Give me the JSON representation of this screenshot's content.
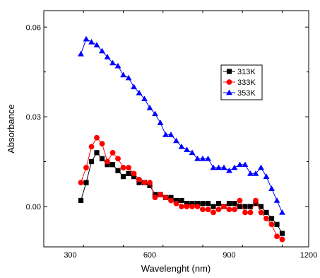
{
  "chart_data": {
    "type": "line",
    "title": "",
    "xlabel": "Wavelenght (nm)",
    "ylabel": "Absorbance",
    "xlim": [
      200,
      1200
    ],
    "ylim": [
      -0.0135,
      0.0655
    ],
    "xticks": [
      300,
      600,
      900,
      1200
    ],
    "xtick_labels": [
      "300",
      "600",
      "900",
      "1200"
    ],
    "yticks": [
      0.0,
      0.03,
      0.06
    ],
    "ytick_labels": [
      "0.00",
      "0.03",
      "0.06"
    ],
    "legend_position": "center-right",
    "grid": false,
    "series": [
      {
        "name": "313K",
        "color": "#000000",
        "marker": "square",
        "x": [
          340,
          360,
          380,
          400,
          420,
          440,
          460,
          480,
          500,
          520,
          540,
          560,
          580,
          600,
          620,
          640,
          660,
          680,
          700,
          720,
          740,
          760,
          780,
          800,
          820,
          840,
          860,
          880,
          900,
          920,
          940,
          960,
          980,
          1000,
          1020,
          1040,
          1060,
          1080,
          1100
        ],
        "y": [
          0.002,
          0.008,
          0.015,
          0.018,
          0.016,
          0.014,
          0.014,
          0.012,
          0.01,
          0.011,
          0.01,
          0.008,
          0.008,
          0.007,
          0.004,
          0.004,
          0.003,
          0.003,
          0.002,
          0.002,
          0.001,
          0.001,
          0.001,
          0.001,
          0.001,
          0.0,
          0.001,
          0.0,
          0.001,
          0.001,
          0.0,
          0.0,
          0.0,
          0.001,
          0.0,
          -0.002,
          -0.004,
          -0.006,
          -0.009
        ]
      },
      {
        "name": "333K",
        "color": "#ff0000",
        "marker": "circle",
        "x": [
          340,
          360,
          380,
          400,
          420,
          440,
          460,
          480,
          500,
          520,
          540,
          560,
          580,
          600,
          620,
          640,
          660,
          680,
          700,
          720,
          740,
          760,
          780,
          800,
          820,
          840,
          860,
          880,
          900,
          920,
          940,
          960,
          980,
          1000,
          1020,
          1040,
          1060,
          1080,
          1100
        ],
        "y": [
          0.008,
          0.013,
          0.02,
          0.023,
          0.021,
          0.015,
          0.018,
          0.016,
          0.013,
          0.013,
          0.011,
          0.009,
          0.008,
          0.008,
          0.003,
          0.004,
          0.003,
          0.002,
          0.001,
          0.0,
          0.0,
          0.0,
          0.0,
          -0.001,
          -0.001,
          -0.002,
          -0.001,
          0.0,
          -0.001,
          -0.001,
          0.002,
          -0.002,
          -0.002,
          0.002,
          -0.002,
          -0.004,
          -0.006,
          -0.01,
          -0.011
        ]
      },
      {
        "name": "353K",
        "color": "#0000ff",
        "marker": "triangle",
        "x": [
          340,
          360,
          380,
          400,
          420,
          440,
          460,
          480,
          500,
          520,
          540,
          560,
          580,
          600,
          620,
          640,
          660,
          680,
          700,
          720,
          740,
          760,
          780,
          800,
          820,
          840,
          860,
          880,
          900,
          920,
          940,
          960,
          980,
          1000,
          1020,
          1040,
          1060,
          1080,
          1100
        ],
        "y": [
          0.051,
          0.056,
          0.055,
          0.054,
          0.052,
          0.05,
          0.048,
          0.047,
          0.044,
          0.043,
          0.04,
          0.038,
          0.036,
          0.033,
          0.031,
          0.028,
          0.024,
          0.024,
          0.022,
          0.02,
          0.019,
          0.018,
          0.016,
          0.016,
          0.016,
          0.013,
          0.013,
          0.013,
          0.012,
          0.013,
          0.014,
          0.014,
          0.011,
          0.011,
          0.013,
          0.01,
          0.006,
          0.002,
          -0.002
        ]
      }
    ]
  }
}
